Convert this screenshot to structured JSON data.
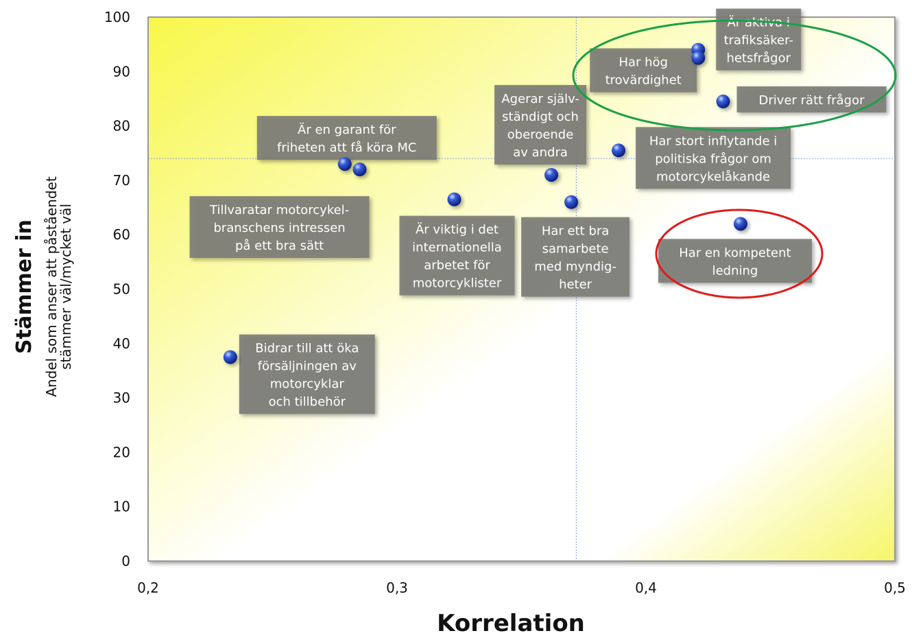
{
  "chart_data": {
    "type": "scatter",
    "title": "",
    "xlabel": "Korrelation",
    "ylabel": "Stämmer in",
    "ylabel_sub": [
      "Andel som anser att påståendet",
      "stämmer väl/mycket väl"
    ],
    "xlim": [
      0.2,
      0.5
    ],
    "ylim": [
      0,
      100
    ],
    "x_ticks": [
      "0,2",
      "0,3",
      "0,4",
      "0,5"
    ],
    "y_ticks": [
      "0",
      "10",
      "20",
      "30",
      "40",
      "50",
      "60",
      "70",
      "80",
      "90",
      "100"
    ],
    "reference_lines": {
      "x": 0.372,
      "y": 74
    },
    "points": [
      {
        "x": 0.421,
        "y": 94,
        "label": [
          "Är aktiva i",
          "trafiksäker-",
          "hetsfrågor"
        ]
      },
      {
        "x": 0.421,
        "y": 92.5,
        "label": [
          "Har hög",
          "trovärdighet"
        ]
      },
      {
        "x": 0.431,
        "y": 84.5,
        "label": [
          "Driver rätt frågor"
        ]
      },
      {
        "x": 0.389,
        "y": 75.5,
        "label": [
          "Har stort inflytande i",
          "politiska frågor om",
          "motorcykelåkande"
        ]
      },
      {
        "x": 0.279,
        "y": 73,
        "label": [
          "Är en garant för",
          "friheten att få köra MC"
        ]
      },
      {
        "x": 0.285,
        "y": 72,
        "label": [
          "Tillvaratar motorcykel-",
          "branschens intressen",
          "på ett bra sätt"
        ]
      },
      {
        "x": 0.362,
        "y": 71,
        "label": [
          "Agerar själv-",
          "ständigt och",
          "oberoende",
          "av andra"
        ]
      },
      {
        "x": 0.323,
        "y": 66.5,
        "label": [
          "Är viktig i det",
          "internationella",
          "arbetet för",
          "motorcyklister"
        ]
      },
      {
        "x": 0.37,
        "y": 66,
        "label": [
          "Har ett bra",
          "samarbete",
          "med myndig-",
          "heter"
        ]
      },
      {
        "x": 0.438,
        "y": 62,
        "label": [
          "Har en kompetent",
          "ledning"
        ]
      },
      {
        "x": 0.233,
        "y": 37.5,
        "label": [
          "Bidrar till att öka",
          "försäljningen av",
          "motorcyklar",
          "och tillbehör"
        ]
      }
    ],
    "highlights": [
      {
        "color": "#1aa049",
        "points": [
          "Är aktiva i trafiksäkerhetsfrågor",
          "Har hög trovärdighet",
          "Driver rätt frågor"
        ]
      },
      {
        "color": "#e01b1b",
        "points": [
          "Har en kompetent ledning"
        ]
      }
    ],
    "colors": {
      "marker": "#1f3fc4",
      "label_box": "#7d7d78",
      "plot_gradient_start": "#f7f74a",
      "plot_gradient_end": "#ffffff"
    }
  }
}
